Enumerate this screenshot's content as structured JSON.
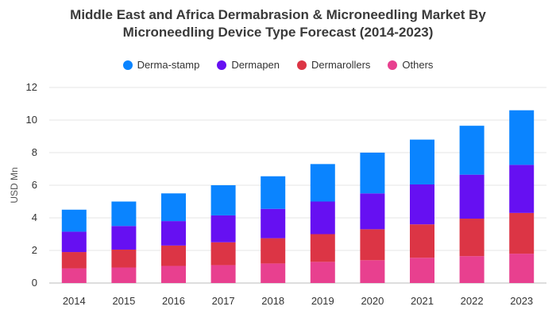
{
  "chart_data": {
    "type": "bar",
    "stacked": true,
    "title_lines": [
      "Middle East and Africa Dermabrasion & Microneedling Market By",
      "Microneedling Device Type Forecast (2014-2023)"
    ],
    "xlabel": "",
    "ylabel": "USD Mn",
    "ylim": [
      0,
      12
    ],
    "yticks": [
      0,
      2,
      4,
      6,
      8,
      10,
      12
    ],
    "grid": true,
    "legend_position": "top",
    "categories": [
      "2014",
      "2015",
      "2016",
      "2017",
      "2018",
      "2019",
      "2020",
      "2021",
      "2022",
      "2023"
    ],
    "series": [
      {
        "name": "Others",
        "color": "#e8408f",
        "values": [
          0.9,
          0.95,
          1.05,
          1.1,
          1.2,
          1.3,
          1.4,
          1.55,
          1.65,
          1.8
        ]
      },
      {
        "name": "Dermarollers",
        "color": "#dc3545",
        "values": [
          1.0,
          1.1,
          1.25,
          1.4,
          1.55,
          1.7,
          1.9,
          2.05,
          2.3,
          2.5
        ]
      },
      {
        "name": "Dermapen",
        "color": "#6610f2",
        "values": [
          1.25,
          1.45,
          1.5,
          1.65,
          1.8,
          2.0,
          2.2,
          2.45,
          2.7,
          2.95
        ]
      },
      {
        "name": "Derma-stamp",
        "color": "#0a84ff",
        "values": [
          1.35,
          1.5,
          1.7,
          1.85,
          2.0,
          2.3,
          2.5,
          2.75,
          3.0,
          3.35
        ]
      }
    ],
    "legend_order": [
      "Derma-stamp",
      "Dermapen",
      "Dermarollers",
      "Others"
    ]
  }
}
